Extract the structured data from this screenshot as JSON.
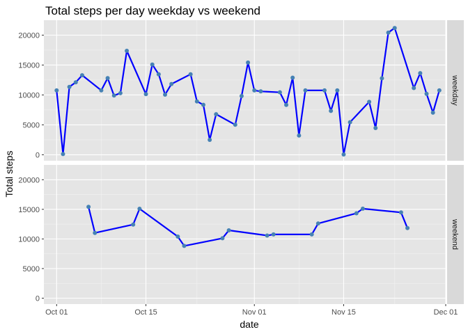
{
  "chart_data": {
    "type": "line",
    "title": "Total steps per day weekday vs weekend",
    "xlabel": "date",
    "ylabel": "Total steps",
    "x_ticks": [
      "Oct 01",
      "Oct 15",
      "Nov 01",
      "Nov 15",
      "Dec 01"
    ],
    "y_ticks": [
      "0",
      "5000",
      "10000",
      "15000",
      "20000"
    ],
    "ylim": [
      -1000,
      22500
    ],
    "xlim": [
      "2012-09-29",
      "2012-12-01"
    ],
    "colors": {
      "line": "#0000ff",
      "point": "#4682b4",
      "panel": "#e5e5e5",
      "strip": "#d9d9d9"
    },
    "grid": true,
    "panels": [
      {
        "label": "weekday",
        "points": [
          [
            "2012-10-01",
            10766
          ],
          [
            "2012-10-02",
            126
          ],
          [
            "2012-10-03",
            11352
          ],
          [
            "2012-10-04",
            12116
          ],
          [
            "2012-10-05",
            13294
          ],
          [
            "2012-10-08",
            10766
          ],
          [
            "2012-10-09",
            12811
          ],
          [
            "2012-10-10",
            9900
          ],
          [
            "2012-10-11",
            10304
          ],
          [
            "2012-10-12",
            17382
          ],
          [
            "2012-10-15",
            10139
          ],
          [
            "2012-10-16",
            15084
          ],
          [
            "2012-10-17",
            13452
          ],
          [
            "2012-10-18",
            10056
          ],
          [
            "2012-10-19",
            11829
          ],
          [
            "2012-10-22",
            13460
          ],
          [
            "2012-10-23",
            8918
          ],
          [
            "2012-10-24",
            8355
          ],
          [
            "2012-10-25",
            2492
          ],
          [
            "2012-10-26",
            6778
          ],
          [
            "2012-10-29",
            5018
          ],
          [
            "2012-10-30",
            9819
          ],
          [
            "2012-10-31",
            15414
          ],
          [
            "2012-11-01",
            10766
          ],
          [
            "2012-11-02",
            10600
          ],
          [
            "2012-11-05",
            10439
          ],
          [
            "2012-11-06",
            8334
          ],
          [
            "2012-11-07",
            12883
          ],
          [
            "2012-11-08",
            3219
          ],
          [
            "2012-11-09",
            10766
          ],
          [
            "2012-11-12",
            10765
          ],
          [
            "2012-11-13",
            7336
          ],
          [
            "2012-11-14",
            10766
          ],
          [
            "2012-11-15",
            41
          ],
          [
            "2012-11-16",
            5441
          ],
          [
            "2012-11-19",
            8841
          ],
          [
            "2012-11-20",
            4472
          ],
          [
            "2012-11-21",
            12787
          ],
          [
            "2012-11-22",
            20427
          ],
          [
            "2012-11-23",
            21194
          ],
          [
            "2012-11-26",
            11162
          ],
          [
            "2012-11-27",
            13646
          ],
          [
            "2012-11-28",
            10183
          ],
          [
            "2012-11-29",
            7047
          ],
          [
            "2012-11-30",
            10766
          ]
        ]
      },
      {
        "label": "weekend",
        "points": [
          [
            "2012-10-06",
            15420
          ],
          [
            "2012-10-07",
            11015
          ],
          [
            "2012-10-13",
            12426
          ],
          [
            "2012-10-14",
            15098
          ],
          [
            "2012-10-20",
            10395
          ],
          [
            "2012-10-21",
            8821
          ],
          [
            "2012-10-27",
            10119
          ],
          [
            "2012-10-28",
            11458
          ],
          [
            "2012-11-03",
            10571
          ],
          [
            "2012-11-04",
            10766
          ],
          [
            "2012-11-10",
            10766
          ],
          [
            "2012-11-11",
            12608
          ],
          [
            "2012-11-17",
            14339
          ],
          [
            "2012-11-18",
            15110
          ],
          [
            "2012-11-24",
            14478
          ],
          [
            "2012-11-25",
            11834
          ]
        ]
      }
    ]
  }
}
